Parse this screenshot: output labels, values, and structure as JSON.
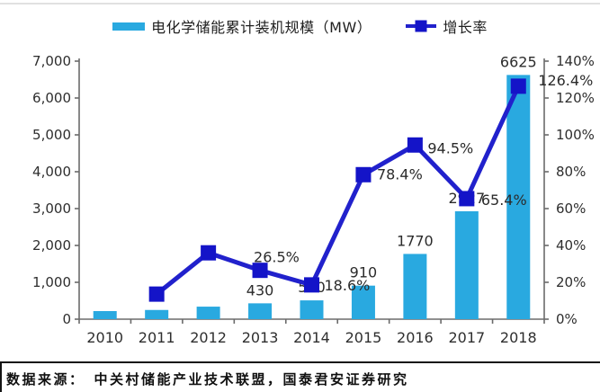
{
  "legend": {
    "bar_label": "电化学储能累计装机规模（MW）",
    "line_label": "增长率"
  },
  "footer": {
    "source_label": "数据来源：",
    "source_text": "中关村储能产业技术联盟，国泰君安证券研究"
  },
  "colors": {
    "bar": "#29A9E0",
    "line": "#2121CC",
    "marker": "#1414C8",
    "axis": "#6b6b6b",
    "axis_text": "#2e2e2e",
    "label_text": "#2b2b2b"
  },
  "chart_data": {
    "type": "bar",
    "subtype": "bar+line combo, dual axis",
    "title": "",
    "categories": [
      "2010",
      "2011",
      "2012",
      "2013",
      "2014",
      "2015",
      "2016",
      "2017",
      "2018"
    ],
    "series": [
      {
        "name": "电化学储能累计装机规模（MW）",
        "type": "bar",
        "axis": "left",
        "values": [
          220,
          250,
          340,
          430,
          510,
          910,
          1770,
          2927,
          6625
        ],
        "labels": [
          null,
          null,
          null,
          "430",
          "510",
          "910",
          "1770",
          "2927",
          "6625"
        ]
      },
      {
        "name": "增长率",
        "type": "line",
        "axis": "right",
        "values": [
          null,
          13.6,
          36,
          26.5,
          18.6,
          78.4,
          94.5,
          65.4,
          126.4
        ],
        "labels": [
          null,
          null,
          null,
          "26.5%",
          "18.6%",
          "78.4%",
          "94.5%",
          "65.4%",
          "126.4%"
        ],
        "label_offsets": [
          null,
          null,
          null,
          [
            -7,
            -9
          ],
          [
            14,
            6
          ],
          [
            15,
            5
          ],
          [
            14,
            9
          ],
          [
            16,
            7
          ],
          [
            22,
            -1
          ]
        ]
      }
    ],
    "left_axis": {
      "min": 0,
      "max": 7000,
      "step": 1000,
      "tick_labels": [
        "0",
        "1,000",
        "2,000",
        "3,000",
        "4,000",
        "5,000",
        "6,000",
        "7,000"
      ]
    },
    "right_axis": {
      "min": 0,
      "max": 140,
      "step": 20,
      "tick_labels": [
        "0%",
        "20%",
        "40%",
        "60%",
        "80%",
        "100%",
        "120%",
        "140%"
      ]
    },
    "grid": false,
    "legend_position": "top"
  }
}
